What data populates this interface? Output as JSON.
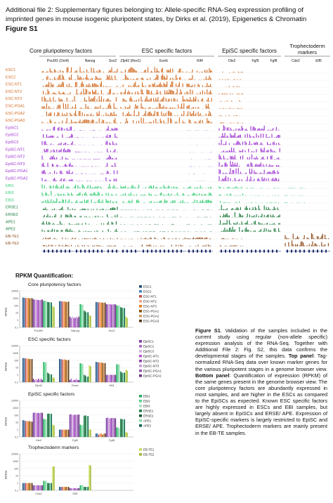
{
  "header": {
    "line1": "Additional file 2: Supplementary figures    belonging to: Allele-specific RNA-Seq expression profiling of",
    "line2": "imprinted genes in mouse isogenic pluripotent states, by Dirks et al. (2019), Epigenetics & Chromatin",
    "figure_label": "Figure S1"
  },
  "browser": {
    "groups": [
      "Core pluripotency factors",
      "ESC specific factors",
      "EpiSC specific factors",
      "Trophectoderm markers"
    ],
    "genes": [
      "Pou5f1 (Oct4)",
      "Nanog",
      "Sox2",
      "Zfp42 (Rex1)",
      "Esrrb",
      "Klf4",
      "Otx2",
      "Fgf5",
      "Fgf8",
      "Cdx2",
      "Elf5"
    ],
    "samples": [
      "ESC1",
      "ESC2",
      "ESC-NT1",
      "ESC-NT2",
      "ESC-NT3",
      "ESC-PGA1",
      "ESC-PGA2",
      "ESC-PGA3",
      "EpiSC1",
      "EpiSC2",
      "EpiSC3",
      "EpiSC-NT1",
      "EpiSC-NT2",
      "EpiSC-NT3",
      "EpiSC-PGA1",
      "EpiSC-PGA2",
      "EBI1",
      "EBI2",
      "EBI3",
      "ERSE1",
      "ERSE2",
      "APE1",
      "APE2",
      "EB-TE1",
      "EB-TE2"
    ],
    "sample_colors": [
      "#d2691e",
      "#d2691e",
      "#d2691e",
      "#d2691e",
      "#d2691e",
      "#d2691e",
      "#d2691e",
      "#d2691e",
      "#9b30d0",
      "#9b30d0",
      "#9b30d0",
      "#9b30d0",
      "#9b30d0",
      "#9b30d0",
      "#9b30d0",
      "#9b30d0",
      "#2ecc71",
      "#2ecc71",
      "#2ecc71",
      "#1a7a3a",
      "#1a7a3a",
      "#1a7a3a",
      "#1a7a3a",
      "#8b4513",
      "#8b4513"
    ]
  },
  "rpkm": {
    "title": "RPKM Quantification:",
    "ylabel": "RPKM",
    "panels": [
      {
        "title": "Core pluripotency factors",
        "genes": [
          "Pou5f1",
          "Nanog",
          "Sox2"
        ],
        "legend": [
          "ESC1",
          "ESC2",
          "ESC-NT1",
          "ESC-NT2",
          "ESC-NT3",
          "ESC-PGA1",
          "ESC-PGA2",
          "ESC-PGA3"
        ]
      },
      {
        "title": "ESC specific factors",
        "genes": [
          "Zfp42",
          "Esrrb",
          "Klf4"
        ],
        "legend": [
          "EpiSC1",
          "EpiSC2",
          "EpiSC3",
          "EpiSC-NT1",
          "EpiSC-NT2",
          "EpiSC-NT3",
          "EpiSC-PGA1",
          "EpiSC-PGA2"
        ]
      },
      {
        "title": "EpiSC specific factors",
        "genes": [
          "Otx2",
          "Fgf5",
          "Fgf8"
        ],
        "legend": [
          "EBI1",
          "EBI2",
          "EBI3",
          "ERSE1",
          "ERSE2",
          "APE1",
          "APE2"
        ]
      },
      {
        "title": "Trophectoderm markers",
        "genes": [
          "Cdx2",
          "Elf5"
        ],
        "legend": [
          "EB-TE1",
          "EB-TE2"
        ]
      }
    ],
    "yticks": [
      "10000",
      "1000",
      "100",
      "10",
      "1",
      "0.1"
    ]
  },
  "chart_data": [
    {
      "type": "bar",
      "title": "Core pluripotency factors",
      "categories": [
        "Pou5f1",
        "Nanog",
        "Sox2"
      ],
      "ylabel": "RPKM",
      "yscale": "log",
      "ylim": [
        0.1,
        10000
      ],
      "groups": [
        {
          "category": "Pou5f1",
          "values": [
            1200,
            1100,
            1000,
            1150,
            1050,
            900,
            950,
            1000,
            700,
            650,
            600,
            600,
            550,
            500,
            600,
            650,
            400,
            450,
            420,
            300,
            280,
            250,
            260,
            80,
            60
          ]
        },
        {
          "category": "Nanog",
          "values": [
            400,
            380,
            350,
            360,
            370,
            300,
            320,
            330,
            3,
            2,
            3,
            2,
            2,
            3,
            2,
            3,
            150,
            140,
            130,
            20,
            15,
            10,
            12,
            5,
            4
          ]
        },
        {
          "category": "Sox2",
          "values": [
            300,
            280,
            260,
            270,
            250,
            240,
            230,
            250,
            150,
            140,
            160,
            150,
            130,
            140,
            150,
            140,
            100,
            90,
            95,
            60,
            50,
            40,
            45,
            3,
            2
          ]
        }
      ]
    },
    {
      "type": "bar",
      "title": "ESC specific factors",
      "categories": [
        "Zfp42",
        "Esrrb",
        "Klf4"
      ],
      "ylabel": "RPKM",
      "yscale": "log",
      "ylim": [
        0.1,
        10000
      ],
      "groups": [
        {
          "category": "Zfp42",
          "values": [
            200,
            190,
            180,
            170,
            160,
            150,
            140,
            150,
            0.3,
            0.2,
            0.3,
            0.2,
            0.3,
            0.2,
            0.3,
            0.2,
            60,
            50,
            55,
            2,
            1.5,
            1,
            1.2,
            0.5,
            0.4
          ]
        },
        {
          "category": "Esrrb",
          "values": [
            150,
            140,
            130,
            120,
            130,
            110,
            100,
            110,
            0.2,
            0.3,
            0.2,
            0.2,
            0.2,
            0.3,
            0.2,
            0.2,
            40,
            35,
            30,
            1,
            0.8,
            0.5,
            0.6,
            20,
            15
          ]
        },
        {
          "category": "Klf4",
          "values": [
            60,
            55,
            50,
            52,
            48,
            45,
            40,
            42,
            1,
            1,
            1,
            1,
            1,
            1,
            1,
            1,
            30,
            25,
            28,
            3,
            2,
            2,
            2,
            5,
            4
          ]
        }
      ]
    },
    {
      "type": "bar",
      "title": "EpiSC specific factors",
      "categories": [
        "Otx2",
        "Fgf5",
        "Fgf8"
      ],
      "ylabel": "RPKM",
      "yscale": "log",
      "ylim": [
        0.1,
        10000
      ],
      "groups": [
        {
          "category": "Otx2",
          "values": [
            20,
            18,
            15,
            16,
            14,
            15,
            13,
            12,
            200,
            220,
            210,
            190,
            200,
            180,
            210,
            200,
            30,
            28,
            25,
            150,
            160,
            140,
            150,
            5,
            4
          ]
        },
        {
          "category": "Fgf5",
          "values": [
            1,
            1,
            1,
            1,
            1,
            1,
            1,
            1,
            120,
            130,
            110,
            100,
            115,
            105,
            110,
            120,
            5,
            4,
            5,
            80,
            90,
            70,
            75,
            1,
            1
          ]
        },
        {
          "category": "Fgf8",
          "values": [
            0.3,
            0.3,
            0.2,
            0.3,
            0.3,
            0.2,
            0.3,
            0.3,
            40,
            45,
            38,
            35,
            40,
            42,
            38,
            36,
            2,
            2,
            1.5,
            30,
            28,
            25,
            26,
            0.5,
            0.4
          ]
        }
      ]
    },
    {
      "type": "bar",
      "title": "Trophectoderm markers",
      "categories": [
        "Cdx2",
        "Elf5"
      ],
      "ylabel": "RPKM",
      "yscale": "log",
      "ylim": [
        0.1,
        10000
      ],
      "groups": [
        {
          "category": "Cdx2",
          "values": [
            1,
            1,
            1,
            1,
            1,
            1,
            1,
            1,
            0.5,
            0.5,
            0.5,
            0.5,
            0.5,
            0.5,
            0.5,
            0.5,
            2,
            2,
            2,
            1,
            1,
            1,
            1,
            200,
            180
          ]
        },
        {
          "category": "Elf5",
          "values": [
            0.3,
            0.3,
            0.3,
            0.3,
            0.3,
            0.3,
            0.3,
            0.3,
            0.2,
            0.2,
            0.2,
            0.2,
            0.2,
            0.2,
            0.2,
            0.2,
            0.5,
            0.5,
            0.5,
            0.3,
            0.3,
            0.3,
            0.3,
            300,
            250
          ]
        }
      ]
    }
  ],
  "caption": {
    "bold1": "Figure S1",
    "text1": ". Validation of the samples included in the current study using regular (non-allele specific) expression analysis of the RNA-Seq. Together with Additional File 2: Fig. S2, this data confirms the developmental stages of the samples. ",
    "bold2": "Top panel",
    "text2": ": Tag-normalized RNA-Seq data over known marker genes for the various pluripotent stages in a genome browser view. ",
    "bold3": "Bottom panel",
    "text3": ": Quantification of expression (RPKM) of the same genes present in the genome browser view. The core pluripotency factors are abundantly expressed in most samples, and are higher in the ESCs as compared to the EpiSCs as expected. Known ESC specific factors are highly expressed in ESCs and EBI samples, but largely absent in EpiSCs and ERSE/ APE. Expression of EpiSC-specific markers is largely restricted to EpiSC and ERSE/ APE. Trophectoderm markers are mainly present in the EB-TE samples."
  }
}
